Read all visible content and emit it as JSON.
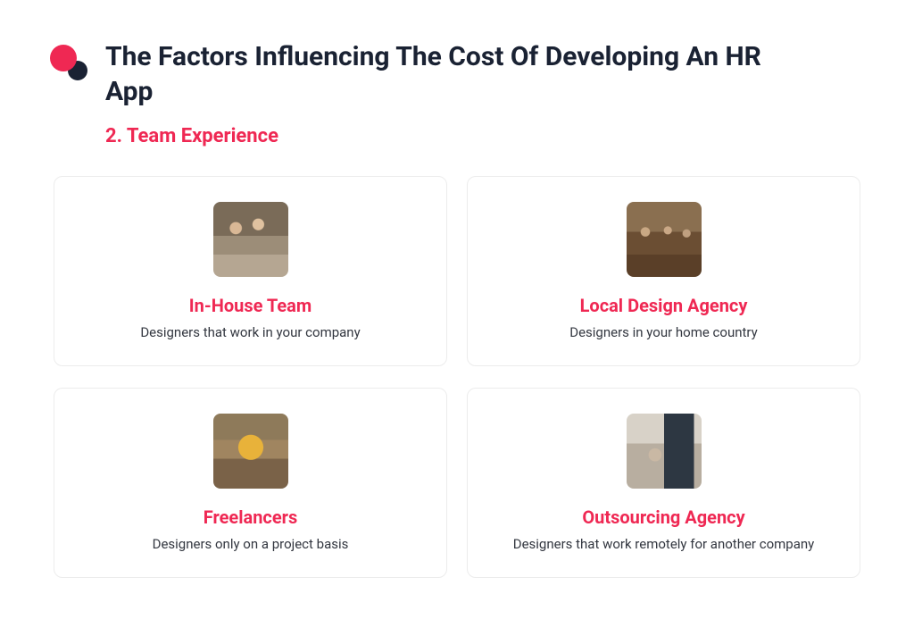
{
  "header": {
    "title": "The Factors Influencing The Cost Of Developing An HR App"
  },
  "subtitle": "2. Team Experience",
  "colors": {
    "accent": "#ef2853",
    "navy": "#1a2233",
    "border": "#ececec",
    "text": "#333740",
    "background": "#ffffff"
  },
  "cards": [
    {
      "title": "In-House Team",
      "description": "Designers that work in your company",
      "thumb_class": "thumb-inhouse"
    },
    {
      "title": "Local Design Agency",
      "description": "Designers in your home country",
      "thumb_class": "thumb-local"
    },
    {
      "title": "Freelancers",
      "description": "Designers only on a project basis",
      "thumb_class": "thumb-freelance"
    },
    {
      "title": "Outsourcing Agency",
      "description": "Designers that work remotely for another company",
      "thumb_class": "thumb-outsource"
    }
  ]
}
